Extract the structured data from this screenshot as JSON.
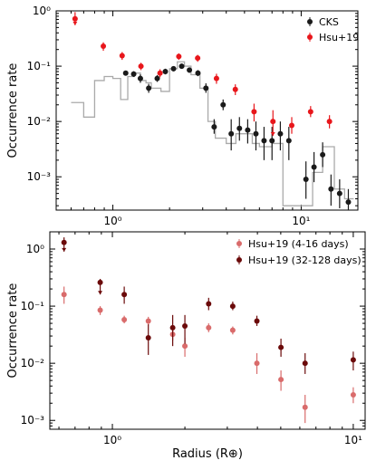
{
  "chart_data": [
    {
      "type": "scatter",
      "x_scale": "log",
      "y_scale": "log",
      "xlim": [
        0.5,
        20
      ],
      "ylim": [
        0.00025,
        1.0
      ],
      "ylabel": "Occurrence rate",
      "xtick_labels": [
        "10⁰",
        "10¹"
      ],
      "ytick_labels": [
        "10⁻³",
        "10⁻²",
        "10⁻¹",
        "10⁰"
      ],
      "legend": {
        "position": "top-right",
        "entries": [
          "CKS",
          "Hsu+19"
        ]
      },
      "histogram": {
        "color": "#aaaaaa",
        "edges": [
          0.6,
          0.7,
          0.8,
          0.9,
          1.0,
          1.1,
          1.2,
          1.3,
          1.4,
          1.5,
          1.6,
          1.8,
          2.0,
          2.2,
          2.4,
          2.6,
          2.9,
          3.2,
          3.5,
          4.0,
          4.5,
          5.0,
          5.5,
          6.0,
          7.0,
          8.0,
          9.0,
          10.0,
          11.5,
          13.0,
          15.0,
          17.0,
          19.0
        ],
        "values": [
          0.022,
          0.012,
          0.055,
          0.065,
          0.06,
          0.025,
          0.065,
          0.075,
          0.055,
          0.05,
          0.04,
          0.035,
          0.09,
          0.12,
          0.1,
          0.07,
          0.04,
          0.01,
          0.005,
          0.004,
          0.006,
          0.006,
          0.004,
          0.0035,
          0.004,
          0.0003,
          0.0003,
          0.0003,
          0.0012,
          0.0035,
          0.0006,
          0.0004
        ]
      },
      "series": [
        {
          "name": "CKS",
          "color": "#1a1a1a",
          "points": [
            {
              "x": 1.17,
              "y": 0.075,
              "lo": 0.068,
              "hi": 0.083
            },
            {
              "x": 1.29,
              "y": 0.072,
              "lo": 0.064,
              "hi": 0.081
            },
            {
              "x": 1.4,
              "y": 0.06,
              "lo": 0.05,
              "hi": 0.071
            },
            {
              "x": 1.55,
              "y": 0.04,
              "lo": 0.033,
              "hi": 0.048
            },
            {
              "x": 1.72,
              "y": 0.06,
              "lo": 0.052,
              "hi": 0.069
            },
            {
              "x": 1.9,
              "y": 0.08,
              "lo": 0.071,
              "hi": 0.09
            },
            {
              "x": 2.1,
              "y": 0.09,
              "lo": 0.081,
              "hi": 0.1
            },
            {
              "x": 2.32,
              "y": 0.1,
              "lo": 0.09,
              "hi": 0.111
            },
            {
              "x": 2.55,
              "y": 0.085,
              "lo": 0.076,
              "hi": 0.095
            },
            {
              "x": 2.83,
              "y": 0.075,
              "lo": 0.066,
              "hi": 0.085
            },
            {
              "x": 3.12,
              "y": 0.04,
              "lo": 0.033,
              "hi": 0.049
            },
            {
              "x": 3.45,
              "y": 0.008,
              "lo": 0.006,
              "hi": 0.011
            },
            {
              "x": 3.85,
              "y": 0.02,
              "lo": 0.016,
              "hi": 0.025
            },
            {
              "x": 4.25,
              "y": 0.006,
              "lo": 0.003,
              "hi": 0.011
            },
            {
              "x": 4.7,
              "y": 0.0075,
              "lo": 0.0045,
              "hi": 0.012
            },
            {
              "x": 5.2,
              "y": 0.007,
              "lo": 0.004,
              "hi": 0.011
            },
            {
              "x": 5.75,
              "y": 0.006,
              "lo": 0.003,
              "hi": 0.01
            },
            {
              "x": 6.35,
              "y": 0.0045,
              "lo": 0.002,
              "hi": 0.008
            },
            {
              "x": 7.0,
              "y": 0.0045,
              "lo": 0.002,
              "hi": 0.008
            },
            {
              "x": 7.75,
              "y": 0.006,
              "lo": 0.003,
              "hi": 0.01
            },
            {
              "x": 8.6,
              "y": 0.0045,
              "lo": 0.002,
              "hi": 0.008
            },
            {
              "x": 10.6,
              "y": 0.0009,
              "lo": 0.0004,
              "hi": 0.0019
            },
            {
              "x": 11.7,
              "y": 0.0015,
              "lo": 0.0008,
              "hi": 0.0028
            },
            {
              "x": 13.0,
              "y": 0.0025,
              "lo": 0.0015,
              "hi": 0.0042
            },
            {
              "x": 14.4,
              "y": 0.0006,
              "lo": 0.0003,
              "hi": 0.0011
            },
            {
              "x": 16.0,
              "y": 0.0005,
              "lo": 0.00027,
              "hi": 0.0009
            },
            {
              "x": 17.8,
              "y": 0.00035,
              "lo": 0.00025,
              "hi": 0.0006
            }
          ]
        },
        {
          "name": "Hsu+19",
          "color": "#e8161b",
          "points": [
            {
              "x": 0.63,
              "y": 0.72,
              "lo": 0.55,
              "hi": 0.95,
              "upper_limit": true
            },
            {
              "x": 0.89,
              "y": 0.23,
              "lo": 0.19,
              "hi": 0.27
            },
            {
              "x": 1.12,
              "y": 0.155,
              "lo": 0.13,
              "hi": 0.18
            },
            {
              "x": 1.41,
              "y": 0.1,
              "lo": 0.085,
              "hi": 0.115
            },
            {
              "x": 1.78,
              "y": 0.075,
              "lo": 0.063,
              "hi": 0.088
            },
            {
              "x": 2.24,
              "y": 0.15,
              "lo": 0.13,
              "hi": 0.17
            },
            {
              "x": 2.82,
              "y": 0.14,
              "lo": 0.12,
              "hi": 0.16
            },
            {
              "x": 3.55,
              "y": 0.06,
              "lo": 0.048,
              "hi": 0.073
            },
            {
              "x": 4.47,
              "y": 0.038,
              "lo": 0.03,
              "hi": 0.047
            },
            {
              "x": 5.62,
              "y": 0.015,
              "lo": 0.01,
              "hi": 0.021
            },
            {
              "x": 7.08,
              "y": 0.01,
              "lo": 0.0055,
              "hi": 0.016,
              "upper_limit": true
            },
            {
              "x": 8.91,
              "y": 0.0085,
              "lo": 0.006,
              "hi": 0.012
            },
            {
              "x": 11.22,
              "y": 0.015,
              "lo": 0.012,
              "hi": 0.019
            },
            {
              "x": 14.13,
              "y": 0.01,
              "lo": 0.0075,
              "hi": 0.013
            }
          ]
        }
      ]
    },
    {
      "type": "scatter",
      "x_scale": "log",
      "y_scale": "log",
      "xlim": [
        0.55,
        11.2
      ],
      "ylim": [
        0.0007,
        2.0
      ],
      "ylabel": "Occurrence rate",
      "xlabel": "Radius (R⊕)",
      "xtick_labels": [
        "10⁰",
        "10¹"
      ],
      "ytick_labels": [
        "10⁻³",
        "10⁻²",
        "10⁻¹",
        "10⁰"
      ],
      "legend": {
        "position": "top-right",
        "entries": [
          "Hsu+19 (4-16 days)",
          "Hsu+19 (32-128 days)"
        ]
      },
      "series": [
        {
          "name": "Hsu+19 (4-16 days)",
          "color": "#d96b6b",
          "points": [
            {
              "x": 0.63,
              "y": 0.16,
              "lo": 0.11,
              "hi": 0.22
            },
            {
              "x": 0.89,
              "y": 0.085,
              "lo": 0.07,
              "hi": 0.1
            },
            {
              "x": 1.12,
              "y": 0.058,
              "lo": 0.05,
              "hi": 0.068
            },
            {
              "x": 1.41,
              "y": 0.055,
              "lo": 0.046,
              "hi": 0.065
            },
            {
              "x": 1.78,
              "y": 0.032,
              "lo": 0.025,
              "hi": 0.04
            },
            {
              "x": 2.0,
              "y": 0.02,
              "lo": 0.013,
              "hi": 0.028
            },
            {
              "x": 2.51,
              "y": 0.042,
              "lo": 0.035,
              "hi": 0.05
            },
            {
              "x": 3.16,
              "y": 0.038,
              "lo": 0.032,
              "hi": 0.044
            },
            {
              "x": 3.98,
              "y": 0.01,
              "lo": 0.0065,
              "hi": 0.015
            },
            {
              "x": 5.01,
              "y": 0.0052,
              "lo": 0.0033,
              "hi": 0.0075
            },
            {
              "x": 6.31,
              "y": 0.0017,
              "lo": 0.0009,
              "hi": 0.0028
            },
            {
              "x": 10.0,
              "y": 0.0028,
              "lo": 0.002,
              "hi": 0.0038
            }
          ]
        },
        {
          "name": "Hsu+19 (32-128 days)",
          "color": "#6b0a0a",
          "points": [
            {
              "x": 0.63,
              "y": 1.3,
              "lo": 0.9,
              "hi": 1.6,
              "upper_limit": true
            },
            {
              "x": 0.89,
              "y": 0.26,
              "lo": 0.16,
              "hi": 0.3,
              "upper_limit": true
            },
            {
              "x": 1.12,
              "y": 0.16,
              "lo": 0.11,
              "hi": 0.22
            },
            {
              "x": 1.41,
              "y": 0.028,
              "lo": 0.014,
              "hi": 0.048
            },
            {
              "x": 1.78,
              "y": 0.042,
              "lo": 0.02,
              "hi": 0.07
            },
            {
              "x": 2.0,
              "y": 0.045,
              "lo": 0.022,
              "hi": 0.07
            },
            {
              "x": 2.51,
              "y": 0.11,
              "lo": 0.085,
              "hi": 0.14
            },
            {
              "x": 3.16,
              "y": 0.1,
              "lo": 0.085,
              "hi": 0.12
            },
            {
              "x": 3.98,
              "y": 0.055,
              "lo": 0.045,
              "hi": 0.068
            },
            {
              "x": 5.01,
              "y": 0.019,
              "lo": 0.013,
              "hi": 0.027
            },
            {
              "x": 6.31,
              "y": 0.01,
              "lo": 0.0065,
              "hi": 0.015
            },
            {
              "x": 10.0,
              "y": 0.0115,
              "lo": 0.0075,
              "hi": 0.016
            }
          ]
        }
      ]
    }
  ]
}
